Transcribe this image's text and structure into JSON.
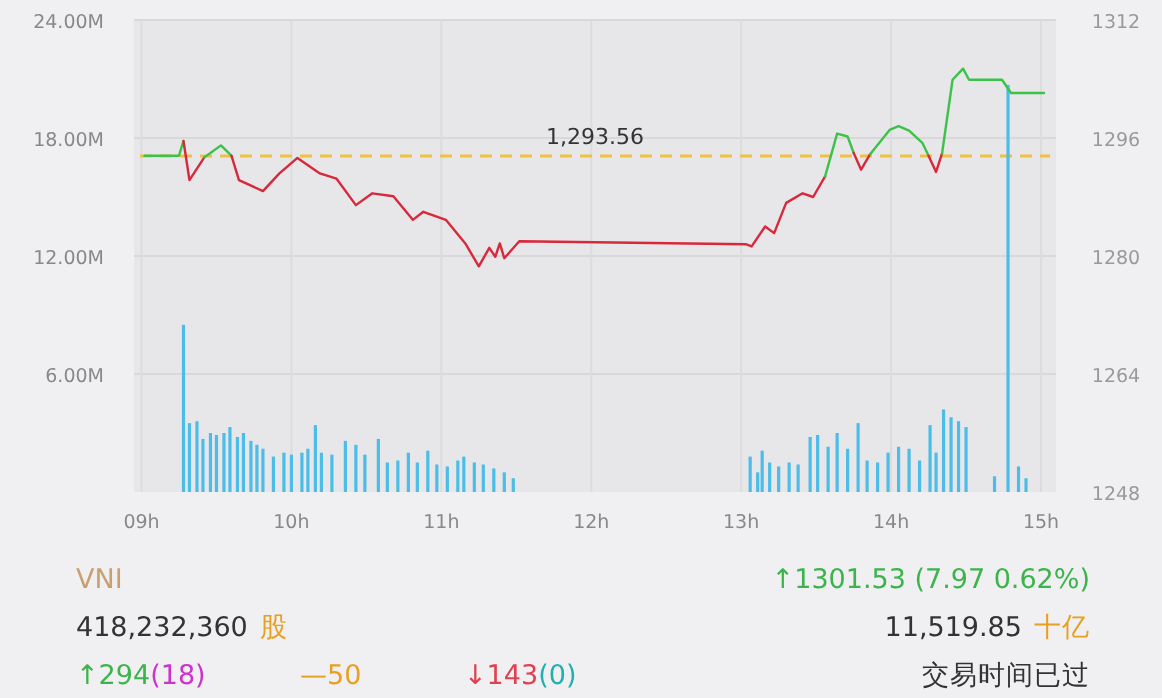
{
  "chart_data": {
    "type": "line",
    "xlim": [
      8.95,
      15.1
    ],
    "xticks": [
      {
        "value": 9,
        "label": "09h"
      },
      {
        "value": 10,
        "label": "10h"
      },
      {
        "value": 11,
        "label": "11h"
      },
      {
        "value": 12,
        "label": "12h"
      },
      {
        "value": 13,
        "label": "13h"
      },
      {
        "value": 14,
        "label": "14h"
      },
      {
        "value": 15,
        "label": "15h"
      }
    ],
    "ylim": [
      0,
      24
    ],
    "yticks": [
      {
        "value": 6,
        "label": "6.00M"
      },
      {
        "value": 12,
        "label": "12.00M"
      },
      {
        "value": 18,
        "label": "18.00M"
      },
      {
        "value": 24,
        "label": "24.00M"
      }
    ],
    "y2lim": [
      1248,
      1312
    ],
    "y2ticks": [
      1248,
      1264,
      1280,
      1296,
      1312
    ],
    "grid": true,
    "marker": "none",
    "line_style": "solid",
    "ref_lines": [
      {
        "axis": "y2",
        "value": 1293.56,
        "label": "1,293.56",
        "color": "#f0c040",
        "line_style": "dashed"
      }
    ],
    "series": [
      {
        "type": "bar",
        "axis": "y",
        "color": "#4cbde8",
        "x": [
          9.28,
          9.32,
          9.37,
          9.41,
          9.46,
          9.5,
          9.55,
          9.59,
          9.64,
          9.68,
          9.73,
          9.77,
          9.81,
          9.88,
          9.95,
          10.0,
          10.07,
          10.11,
          10.16,
          10.2,
          10.27,
          10.36,
          10.43,
          10.49,
          10.58,
          10.64,
          10.71,
          10.78,
          10.84,
          10.91,
          10.97,
          11.04,
          11.11,
          11.15,
          11.22,
          11.28,
          11.35,
          11.42,
          11.48,
          13.06,
          13.11,
          13.14,
          13.19,
          13.25,
          13.32,
          13.38,
          13.46,
          13.51,
          13.58,
          13.64,
          13.71,
          13.78,
          13.84,
          13.91,
          13.98,
          14.05,
          14.12,
          14.19,
          14.26,
          14.3,
          14.35,
          14.4,
          14.45,
          14.5,
          14.69,
          14.78,
          14.85,
          14.9
        ],
        "values": [
          8.5,
          3.5,
          3.6,
          2.7,
          3.0,
          2.9,
          3.0,
          3.3,
          2.8,
          3.0,
          2.6,
          2.4,
          2.2,
          1.8,
          2.0,
          1.9,
          2.0,
          2.2,
          3.4,
          2.0,
          1.9,
          2.6,
          2.4,
          1.9,
          2.7,
          1.5,
          1.6,
          2.0,
          1.5,
          2.1,
          1.4,
          1.3,
          1.6,
          1.8,
          1.5,
          1.4,
          1.2,
          1.0,
          0.7,
          1.8,
          1.0,
          2.1,
          1.5,
          1.3,
          1.5,
          1.4,
          2.8,
          2.9,
          2.3,
          3.0,
          2.2,
          3.5,
          1.6,
          1.5,
          2.0,
          2.3,
          2.2,
          1.6,
          3.4,
          2.0,
          4.2,
          3.8,
          3.6,
          3.3,
          0.8,
          20.7,
          1.3,
          0.7
        ]
      },
      {
        "axis": "y2",
        "color": "#3cc24a",
        "x": [
          9.02,
          9.25,
          9.28
        ],
        "values": [
          1293.6,
          1293.6,
          1295.6
        ]
      },
      {
        "axis": "y2",
        "color": "#d8283c",
        "x": [
          9.28,
          9.32,
          9.42
        ],
        "values": [
          1295.6,
          1290.3,
          1293.4
        ]
      },
      {
        "axis": "y2",
        "color": "#3cc24a",
        "x": [
          9.42,
          9.53,
          9.6
        ],
        "values": [
          1293.4,
          1295.0,
          1293.6
        ]
      },
      {
        "axis": "y2",
        "color": "#d8283c",
        "x": [
          9.6,
          9.65,
          9.81,
          9.92,
          10.04,
          10.19,
          10.3,
          10.43,
          10.54,
          10.68,
          10.81,
          10.88,
          11.03,
          11.16,
          11.25,
          11.32,
          11.36,
          11.39,
          11.42,
          11.52,
          13.03,
          13.07,
          13.16,
          13.22,
          13.3,
          13.41,
          13.48,
          13.56
        ],
        "values": [
          1293.6,
          1290.3,
          1288.8,
          1291.2,
          1293.3,
          1291.2,
          1290.5,
          1286.9,
          1288.5,
          1288.1,
          1284.9,
          1286.0,
          1284.9,
          1281.7,
          1278.6,
          1281.1,
          1279.9,
          1281.7,
          1279.7,
          1282.0,
          1281.6,
          1281.3,
          1284.0,
          1283.1,
          1287.2,
          1288.5,
          1288.0,
          1290.8
        ]
      },
      {
        "axis": "y2",
        "color": "#3cc24a",
        "x": [
          13.56,
          13.64,
          13.71,
          13.75
        ],
        "values": [
          1290.8,
          1296.6,
          1296.2,
          1294.0
        ]
      },
      {
        "axis": "y2",
        "color": "#d8283c",
        "x": [
          13.75,
          13.8,
          13.86
        ],
        "values": [
          1294.0,
          1291.7,
          1293.8
        ]
      },
      {
        "axis": "y2",
        "color": "#3cc24a",
        "x": [
          13.86,
          13.99,
          14.05,
          14.12,
          14.21,
          14.25
        ],
        "values": [
          1293.8,
          1297.1,
          1297.6,
          1297.0,
          1295.3,
          1293.6
        ]
      },
      {
        "axis": "y2",
        "color": "#d8283c",
        "x": [
          14.25,
          14.3,
          14.34
        ],
        "values": [
          1293.6,
          1291.4,
          1293.9
        ]
      },
      {
        "axis": "y2",
        "color": "#3cc24a",
        "x": [
          14.34,
          14.41,
          14.48,
          14.52,
          14.74,
          14.8,
          15.02
        ],
        "values": [
          1293.9,
          1303.9,
          1305.4,
          1303.9,
          1303.9,
          1302.1,
          1302.1
        ]
      }
    ],
    "annotations": [
      "VNI",
      "418,232,360",
      "股",
      "↑1301.53 (7.97 0.62%)",
      "11,519.85",
      "十亿",
      "↑294",
      "(18)",
      "—50",
      "↓143",
      "(0)",
      "交易时间已过"
    ]
  }
}
